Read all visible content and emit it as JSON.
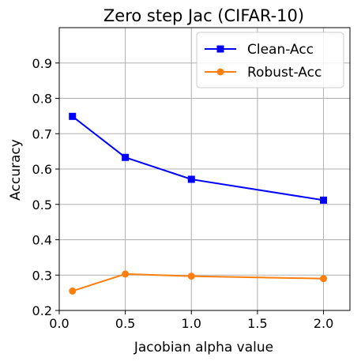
{
  "chart_data": {
    "type": "line",
    "title": "Zero step Jac (CIFAR-10)",
    "xlabel": "Jacobian alpha value",
    "ylabel": "Accuracy",
    "xlim": [
      0.0,
      2.2
    ],
    "ylim": [
      0.2,
      1.0
    ],
    "xticks": [
      "0.0",
      "0.5",
      "1.0",
      "1.5",
      "2.0"
    ],
    "yticks": [
      "0.2",
      "0.3",
      "0.4",
      "0.5",
      "0.6",
      "0.7",
      "0.8",
      "0.9"
    ],
    "grid": true,
    "legend_position": "top-right",
    "series": [
      {
        "name": "Clean-Acc",
        "color": "#0000ff",
        "marker": "square",
        "x": [
          0.1,
          0.5,
          1.0,
          2.0
        ],
        "y": [
          0.749,
          0.633,
          0.571,
          0.512
        ]
      },
      {
        "name": "Robust-Acc",
        "color": "#ff7f0e",
        "marker": "circle",
        "x": [
          0.1,
          0.5,
          1.0,
          2.0
        ],
        "y": [
          0.255,
          0.303,
          0.297,
          0.29
        ]
      }
    ]
  }
}
